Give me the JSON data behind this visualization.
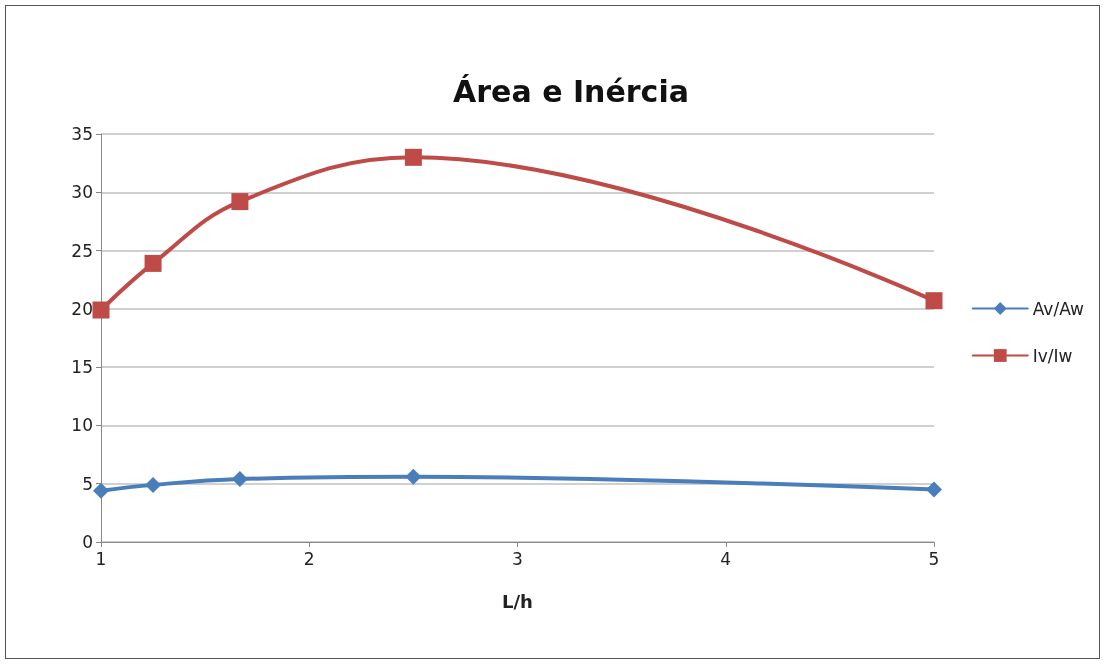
{
  "chart_data": {
    "type": "line",
    "title": "Área e Inércia",
    "xlabel": "L/h",
    "x": [
      1,
      1.25,
      1.667,
      2.5,
      5
    ],
    "series": [
      {
        "name": "Av/Aw",
        "color": "#4a7ebb",
        "marker": "diamond",
        "values": [
          4.4,
          4.9,
          5.4,
          5.6,
          4.5
        ]
      },
      {
        "name": "Iv/Iw",
        "color": "#be4b48",
        "marker": "square",
        "values": [
          19.9,
          23.9,
          29.2,
          33.0,
          20.7
        ]
      }
    ],
    "xlim": [
      1,
      5
    ],
    "xticks": [
      1,
      2,
      3,
      4,
      5
    ],
    "ylim": [
      0,
      35
    ],
    "yticks": [
      0,
      5,
      10,
      15,
      20,
      25,
      30,
      35
    ],
    "grid": "y",
    "legend": "right",
    "line_style": "solid"
  }
}
